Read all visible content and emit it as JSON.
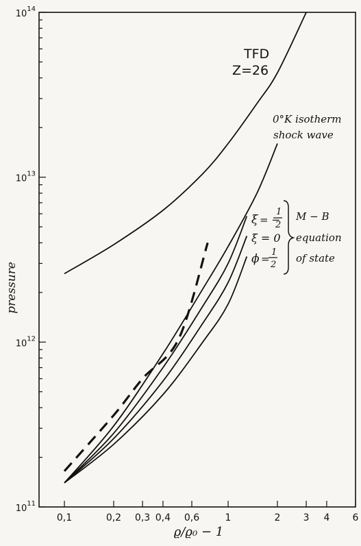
{
  "chart_data": {
    "type": "line",
    "title": "",
    "xlabel": "ϱ/ϱ₀ − 1",
    "ylabel": "pressure",
    "x_scale": "log",
    "y_scale": "log",
    "xlim": [
      0.07,
      6
    ],
    "ylim": [
      100000000000.0,
      100000000000000.0
    ],
    "x_ticks": [
      {
        "v": 0.1,
        "label": "0,1"
      },
      {
        "v": 0.2,
        "label": "0,2"
      },
      {
        "v": 0.3,
        "label": "0,3"
      },
      {
        "v": 0.4,
        "label": "0,4"
      },
      {
        "v": 0.6,
        "label": "0,6"
      },
      {
        "v": 1,
        "label": "1"
      },
      {
        "v": 2,
        "label": "2"
      },
      {
        "v": 3,
        "label": "3"
      },
      {
        "v": 4,
        "label": "4"
      },
      {
        "v": 6,
        "label": "6"
      }
    ],
    "y_ticks": [
      {
        "v": 100000000000.0,
        "base": "10",
        "exp": "11"
      },
      {
        "v": 1000000000000.0,
        "base": "10",
        "exp": "12"
      },
      {
        "v": 10000000000000.0,
        "base": "10",
        "exp": "13"
      },
      {
        "v": 100000000000000.0,
        "base": "10",
        "exp": "14"
      }
    ],
    "series": [
      {
        "id": "tfd",
        "style": "solid",
        "x": [
          0.1,
          0.2,
          0.4,
          0.7,
          1.0,
          1.5,
          2.0,
          3.0
        ],
        "y": [
          2600000000000.0,
          3900000000000.0,
          6300000000000.0,
          10500000000000.0,
          16000000000000.0,
          28000000000000.0,
          43000000000000.0,
          100000000000000.0
        ]
      },
      {
        "id": "isotherm-shock",
        "style": "solid",
        "x": [
          0.1,
          0.2,
          0.4,
          0.7,
          1.0,
          1.5,
          2.0
        ],
        "y": [
          140000000000.0,
          310000000000.0,
          850000000000.0,
          2100000000000.0,
          3800000000000.0,
          8000000000000.0,
          16000000000000.0
        ]
      },
      {
        "id": "xi-neg-half",
        "style": "solid",
        "x": [
          0.1,
          0.2,
          0.4,
          0.7,
          1.0,
          1.3
        ],
        "y": [
          140000000000.0,
          280000000000.0,
          700000000000.0,
          1650000000000.0,
          3000000000000.0,
          5800000000000.0
        ]
      },
      {
        "id": "xi-zero",
        "style": "solid",
        "x": [
          0.1,
          0.2,
          0.4,
          0.7,
          1.0,
          1.3
        ],
        "y": [
          140000000000.0,
          260000000000.0,
          580000000000.0,
          1300000000000.0,
          2300000000000.0,
          4400000000000.0
        ]
      },
      {
        "id": "xi-half",
        "style": "solid",
        "x": [
          0.1,
          0.2,
          0.4,
          0.7,
          1.0,
          1.3
        ],
        "y": [
          140000000000.0,
          240000000000.0,
          480000000000.0,
          1000000000000.0,
          1700000000000.0,
          3300000000000.0
        ]
      },
      {
        "id": "experiment-dashed",
        "style": "dashed",
        "x": [
          0.1,
          0.2,
          0.3,
          0.5,
          0.75
        ],
        "y": [
          165000000000.0,
          360000000000.0,
          600000000000.0,
          1050000000000.0,
          4000000000000.0
        ]
      }
    ],
    "annotations": {
      "tfd_line1": "TFD",
      "tfd_line2": "Z=26",
      "iso_line1": "0°K isotherm",
      "iso_line2": "shock wave",
      "xi1_sym": "ξ",
      "xi1_eq": "= −",
      "xi1_num": "1",
      "xi1_den": "2",
      "xi2": "ξ = 0",
      "xi3_sym": "ϕ",
      "xi3_eq": "=",
      "xi3_num": "1",
      "xi3_den": "2",
      "mb1": "M − B",
      "mb2": "equation",
      "mb3": "of state"
    }
  }
}
